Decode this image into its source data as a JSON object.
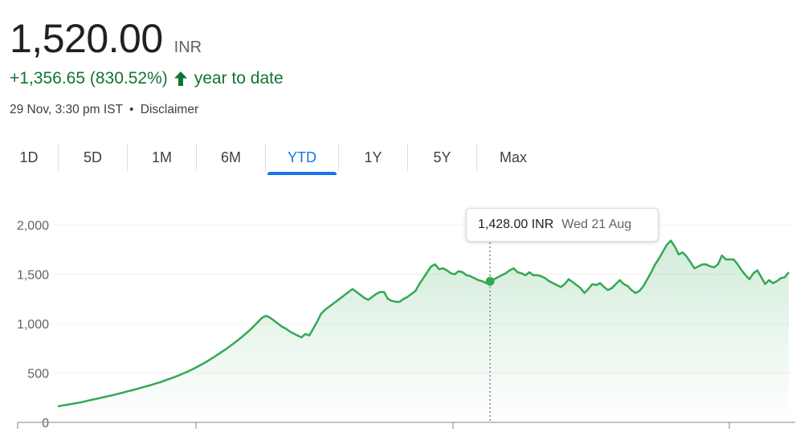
{
  "quote": {
    "price": "1,520.00",
    "currency": "INR",
    "change": "+1,356.65 (830.52%)",
    "change_period": "year to date",
    "timestamp": "29 Nov, 3:30 pm IST",
    "separator": "•",
    "disclaimer": "Disclaimer"
  },
  "ranges": [
    {
      "label": "1D",
      "selected": false
    },
    {
      "label": "5D",
      "selected": false
    },
    {
      "label": "1M",
      "selected": false
    },
    {
      "label": "6M",
      "selected": false
    },
    {
      "label": "YTD",
      "selected": true
    },
    {
      "label": "1Y",
      "selected": false
    },
    {
      "label": "5Y",
      "selected": false
    },
    {
      "label": "Max",
      "selected": false
    }
  ],
  "tooltip": {
    "value": "1,428.00 INR",
    "date": "Wed 21 Aug"
  },
  "colors": {
    "line": "#34a853",
    "positive_text": "#137333",
    "selected_tab": "#1a73e8"
  },
  "chart_data": {
    "type": "area",
    "title": "",
    "xlabel": "",
    "ylabel": "",
    "ylim": [
      0,
      2000
    ],
    "yticks": [
      0,
      500,
      1000,
      1500,
      2000
    ],
    "ytick_labels": [
      "0",
      "500",
      "1,000",
      "1,500",
      "2,000"
    ],
    "grid": true,
    "legend": "none",
    "hover": {
      "value": 1428,
      "index": 110
    },
    "series": [
      {
        "values": [
          163,
          169,
          176,
          183,
          190,
          197,
          204,
          213,
          223,
          232,
          240,
          249,
          258,
          267,
          276,
          286,
          296,
          306,
          316,
          326,
          337,
          348,
          359,
          370,
          381,
          395,
          405,
          420,
          434,
          449,
          464,
          480,
          497,
          514,
          532,
          552,
          573,
          595,
          619,
          643,
          668,
          694,
          721,
          748,
          777,
          807,
          838,
          870,
          904,
          940,
          978,
          1020,
          1060,
          1080,
          1060,
          1030,
          1000,
          970,
          950,
          920,
          900,
          880,
          860,
          895,
          880,
          950,
          1020,
          1100,
          1140,
          1170,
          1200,
          1230,
          1260,
          1290,
          1320,
          1350,
          1320,
          1290,
          1260,
          1240,
          1270,
          1300,
          1320,
          1320,
          1250,
          1230,
          1220,
          1220,
          1250,
          1270,
          1300,
          1330,
          1400,
          1460,
          1520,
          1580,
          1600,
          1550,
          1560,
          1540,
          1510,
          1500,
          1530,
          1520,
          1490,
          1480,
          1460,
          1440,
          1430,
          1410,
          1428,
          1450,
          1470,
          1490,
          1510,
          1540,
          1560,
          1520,
          1510,
          1490,
          1520,
          1490,
          1490,
          1480,
          1460,
          1430,
          1410,
          1390,
          1370,
          1400,
          1450,
          1420,
          1390,
          1360,
          1310,
          1350,
          1400,
          1390,
          1410,
          1370,
          1340,
          1360,
          1400,
          1440,
          1400,
          1380,
          1340,
          1310,
          1330,
          1380,
          1450,
          1520,
          1600,
          1660,
          1730,
          1800,
          1840,
          1780,
          1700,
          1720,
          1680,
          1620,
          1560,
          1580,
          1600,
          1600,
          1580,
          1570,
          1600,
          1690,
          1650,
          1650,
          1650,
          1600,
          1540,
          1490,
          1450,
          1510,
          1540,
          1470,
          1400,
          1440,
          1410,
          1430,
          1460,
          1470,
          1520
        ]
      }
    ]
  }
}
